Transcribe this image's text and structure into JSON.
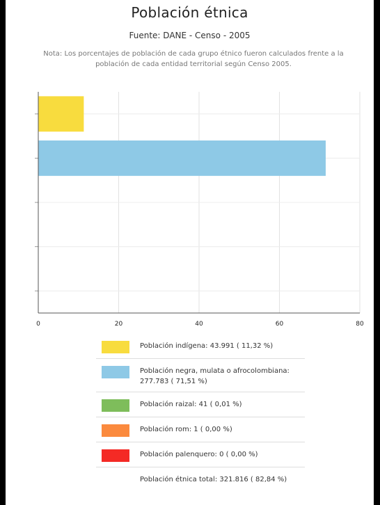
{
  "chart_data": {
    "type": "bar",
    "orientation": "horizontal",
    "title": "Población étnica",
    "subtitle": "Fuente: DANE - Censo - 2005",
    "note": "Nota: Los porcentajes de población de cada grupo étnico fueron calculados frente a la población de cada entidad territorial según Censo 2005.",
    "categories": [
      "Población indígena",
      "Población negra, mulata o afrocolombiana",
      "Población raizal",
      "Población rom",
      "Población palenquero"
    ],
    "values": [
      11.32,
      71.51,
      0.01,
      0.0,
      0.0
    ],
    "colors": [
      "#f8dc3e",
      "#8ec9e6",
      "#7ebd5b",
      "#fb8a3e",
      "#f42a25"
    ],
    "xlim": [
      0,
      80
    ],
    "xticks": [
      "0",
      "20",
      "40",
      "60",
      "80"
    ],
    "grid": true,
    "legend": {
      "position": "bottom",
      "items": [
        {
          "label": "Población indígena:  43.991 ( 11,32 %)",
          "color": "#f8dc3e"
        },
        {
          "label": "Población negra, mulata o afrocolombiana:  277.783 ( 71,51 %)",
          "color": "#8ec9e6"
        },
        {
          "label": "Población raizal:  41 ( 0,01 %)",
          "color": "#7ebd5b"
        },
        {
          "label": "Población rom:  1 ( 0,00 %)",
          "color": "#fb8a3e"
        },
        {
          "label": "Población palenquero:  0 ( 0,00 %)",
          "color": "#f42a25"
        },
        {
          "label": "Población étnica total:  321.816 ( 82,84 %)",
          "color": ""
        }
      ]
    }
  }
}
